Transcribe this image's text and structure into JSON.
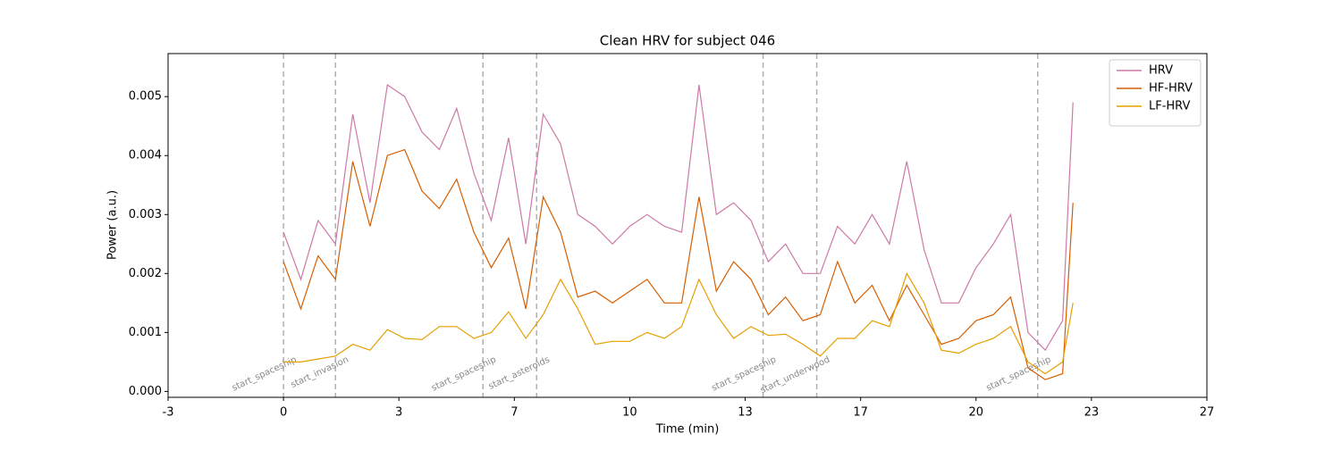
{
  "chart_data": {
    "type": "line",
    "title": "Clean HRV for subject 046",
    "x_label": "Time (min)",
    "y_label": "Power (a.u.)",
    "x": [
      0,
      0.5,
      1,
      1.5,
      2,
      2.5,
      3,
      3.5,
      4,
      4.5,
      5,
      5.5,
      6,
      6.5,
      7,
      7.5,
      8,
      8.5,
      9,
      9.5,
      10,
      10.5,
      11,
      11.5,
      12,
      12.5,
      13,
      13.5,
      14,
      14.5,
      15,
      15.5,
      16,
      16.5,
      17,
      17.5,
      18,
      18.5,
      19,
      19.5,
      20,
      20.5,
      21,
      21.5,
      22,
      22.5,
      22.8
    ],
    "series": [
      {
        "name": "HRV",
        "color": "#cc79a7",
        "values": [
          0.0027,
          0.0019,
          0.0029,
          0.0025,
          0.0047,
          0.0032,
          0.0052,
          0.005,
          0.0044,
          0.0041,
          0.0048,
          0.0037,
          0.0029,
          0.0043,
          0.0025,
          0.0047,
          0.0042,
          0.003,
          0.0028,
          0.0025,
          0.0028,
          0.003,
          0.0028,
          0.0027,
          0.0052,
          0.003,
          0.0032,
          0.0029,
          0.0022,
          0.0025,
          0.002,
          0.002,
          0.0028,
          0.0025,
          0.003,
          0.0025,
          0.0039,
          0.0024,
          0.0015,
          0.0015,
          0.0021,
          0.0025,
          0.003,
          0.001,
          0.0007,
          0.0012,
          0.0049
        ]
      },
      {
        "name": "HF-HRV",
        "color": "#d55e00",
        "values": [
          0.0022,
          0.0014,
          0.0023,
          0.0019,
          0.0039,
          0.0028,
          0.004,
          0.0041,
          0.0034,
          0.0031,
          0.0036,
          0.0027,
          0.0021,
          0.0026,
          0.0014,
          0.0033,
          0.0027,
          0.0016,
          0.0017,
          0.0015,
          0.0017,
          0.0019,
          0.0015,
          0.0015,
          0.0033,
          0.0017,
          0.0022,
          0.0019,
          0.0013,
          0.0016,
          0.0012,
          0.0013,
          0.0022,
          0.0015,
          0.0018,
          0.0012,
          0.0018,
          0.0013,
          0.0008,
          0.0009,
          0.0012,
          0.0013,
          0.0016,
          0.0004,
          0.0002,
          0.0003,
          0.0032
        ]
      },
      {
        "name": "LF-HRV",
        "color": "#e69f00",
        "values": [
          0.0005,
          0.0005,
          0.00055,
          0.0006,
          0.0008,
          0.0007,
          0.00105,
          0.0009,
          0.00088,
          0.0011,
          0.0011,
          0.0009,
          0.001,
          0.00135,
          0.0009,
          0.0013,
          0.0019,
          0.0014,
          0.0008,
          0.00085,
          0.00085,
          0.001,
          0.0009,
          0.0011,
          0.0019,
          0.0013,
          0.0009,
          0.0011,
          0.00095,
          0.00097,
          0.0008,
          0.0006,
          0.0009,
          0.0009,
          0.0012,
          0.0011,
          0.002,
          0.0015,
          0.0007,
          0.00065,
          0.0008,
          0.0009,
          0.0011,
          0.0005,
          0.0003,
          0.0005,
          0.0015
        ]
      }
    ],
    "events": [
      {
        "x": 0,
        "label": "start_spaceship"
      },
      {
        "x": 1.5,
        "label": "start_invasion"
      },
      {
        "x": 5.76,
        "label": "start_spaceship"
      },
      {
        "x": 7.31,
        "label": "start_asteroids"
      },
      {
        "x": 13.85,
        "label": "start_spaceship"
      },
      {
        "x": 15.4,
        "label": "start_underwood"
      },
      {
        "x": 21.78,
        "label": "start_spaceship"
      }
    ],
    "xlim": [
      -3.333,
      26.667
    ],
    "xticks": [
      {
        "value": -3.333,
        "label": "-3"
      },
      {
        "value": 0,
        "label": "0"
      },
      {
        "value": 3.333,
        "label": "3"
      },
      {
        "value": 6.667,
        "label": "7"
      },
      {
        "value": 10,
        "label": "10"
      },
      {
        "value": 13.333,
        "label": "13"
      },
      {
        "value": 16.667,
        "label": "17"
      },
      {
        "value": 20,
        "label": "20"
      },
      {
        "value": 23.333,
        "label": "23"
      },
      {
        "value": 26.667,
        "label": "27"
      }
    ],
    "ylim": [
      -0.0001,
      0.00573
    ],
    "yticks": [
      {
        "value": 0,
        "label": "0.000"
      },
      {
        "value": 0.001,
        "label": "0.001"
      },
      {
        "value": 0.002,
        "label": "0.002"
      },
      {
        "value": 0.003,
        "label": "0.003"
      },
      {
        "value": 0.004,
        "label": "0.004"
      },
      {
        "value": 0.005,
        "label": "0.005"
      }
    ],
    "legend": "upper right"
  }
}
